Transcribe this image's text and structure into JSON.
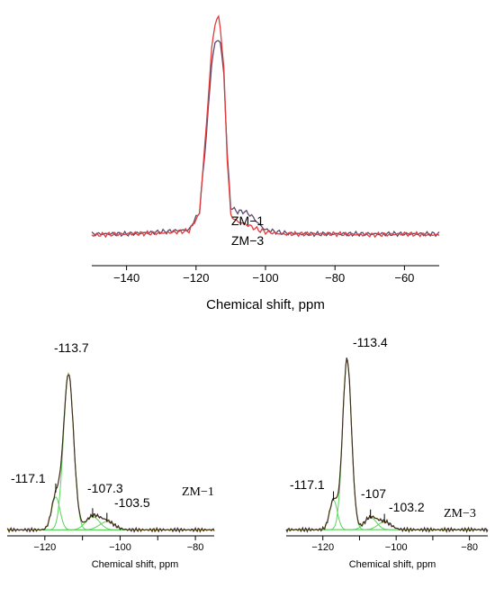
{
  "chart_data": [
    {
      "type": "line",
      "panel": "top",
      "xlabel": "Chemical shift, ppm",
      "xlim": [
        -150,
        -50
      ],
      "ylim": [
        0,
        1.1
      ],
      "x_ticks": [
        -140,
        -120,
        -100,
        -80,
        -60
      ],
      "x_tick_labels": [
        "−140",
        "−120",
        "−100",
        "−80",
        "−60"
      ],
      "series": [
        {
          "name": "ZM−1",
          "color": "#5a4a6e",
          "x": [
            -150,
            -140,
            -130,
            -122,
            -119,
            -117,
            -115.5,
            -114.5,
            -113.8,
            -113,
            -112,
            -111,
            -110,
            -108,
            -106,
            -104,
            -102,
            -100,
            -95,
            -90,
            -80,
            -70,
            -60,
            -50
          ],
          "y": [
            0.01,
            0.01,
            0.02,
            0.03,
            0.12,
            0.5,
            0.85,
            0.95,
            0.97,
            0.95,
            0.8,
            0.4,
            0.14,
            0.12,
            0.12,
            0.1,
            0.06,
            0.03,
            0.015,
            0.01,
            0.01,
            0.01,
            0.01,
            0.01
          ]
        },
        {
          "name": "ZM−3",
          "color": "#e03c3c",
          "x": [
            -150,
            -140,
            -130,
            -122,
            -119,
            -117,
            -115.5,
            -114.5,
            -113.6,
            -113,
            -112,
            -111,
            -110,
            -108,
            -106,
            -104,
            -102,
            -100,
            -95,
            -90,
            -80,
            -70,
            -60,
            -50
          ],
          "y": [
            0.005,
            0.01,
            0.015,
            0.025,
            0.11,
            0.55,
            0.92,
            1.05,
            1.08,
            1.03,
            0.82,
            0.38,
            0.1,
            0.07,
            0.06,
            0.045,
            0.03,
            0.02,
            0.01,
            0.01,
            0.01,
            0.005,
            0.01,
            0.005
          ]
        }
      ],
      "annotations": [
        "ZM−1",
        "ZM−3"
      ]
    },
    {
      "type": "line",
      "panel": "bottom-left",
      "sample": "ZM−1",
      "xlabel": "Chemical shift, ppm",
      "xlim": [
        -130,
        -75
      ],
      "ylim": [
        0,
        1.08
      ],
      "x_ticks": [
        -120,
        -110,
        -100,
        -90,
        -80
      ],
      "x_tick_labels": [
        "−120",
        "",
        "−100",
        "",
        "−80"
      ],
      "peaks": [
        {
          "label": "-113.7",
          "center": -113.7
        },
        {
          "label": "-117.1",
          "center": -117.1
        },
        {
          "label": "-107.3",
          "center": -107.3
        },
        {
          "label": "-103.5",
          "center": -103.5
        }
      ],
      "series_tag": "ZM−1"
    },
    {
      "type": "line",
      "panel": "bottom-right",
      "sample": "ZM−3",
      "xlabel": "Chemical shift, ppm",
      "xlim": [
        -130,
        -75
      ],
      "ylim": [
        0,
        1.08
      ],
      "x_ticks": [
        -120,
        -110,
        -100,
        -90,
        -80
      ],
      "x_tick_labels": [
        "−120",
        "",
        "−100",
        "",
        "−80"
      ],
      "peaks": [
        {
          "label": "-113.4",
          "center": -113.4
        },
        {
          "label": "-117.1",
          "center": -117.1
        },
        {
          "label": "-107",
          "center": -107
        },
        {
          "label": "-103.2",
          "center": -103.2
        }
      ],
      "series_tag": "ZM−3"
    }
  ],
  "colors": {
    "zm1": "#5a4a6e",
    "zm3": "#e03c3c",
    "fit_component": "#5ad45a",
    "fit_envelope": "#b8a030",
    "experimental": "#3a2a2a"
  }
}
